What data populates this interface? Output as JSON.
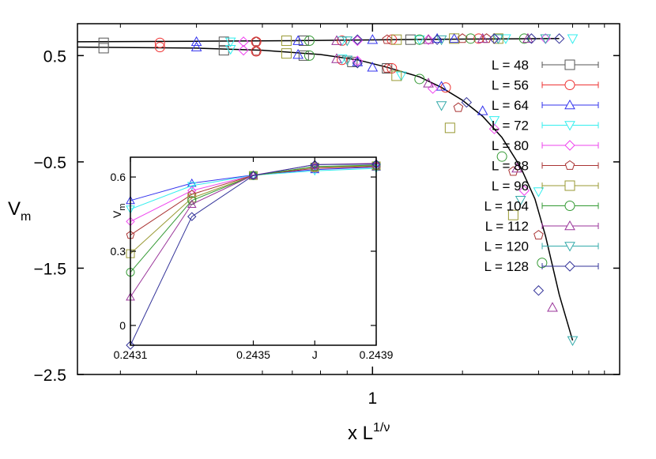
{
  "chart_data": [
    {
      "name": "main",
      "type": "scatter",
      "title": "",
      "xlabel": "x L^{1/ν}",
      "xlabel_base": "x L",
      "xlabel_sup": "1/ν",
      "ylabel": "V_m",
      "ylabel_base": "V",
      "ylabel_sub": "m",
      "xscale": "log",
      "xlim": [
        0.55,
        1.65
      ],
      "ylim": [
        -2.5,
        0.8
      ],
      "xticks": [
        {
          "value": 1,
          "label": "1"
        }
      ],
      "yticks": [
        {
          "value": 0.5,
          "label": "0.5"
        },
        {
          "value": -0.5,
          "label": "−0.5"
        },
        {
          "value": -1.5,
          "label": "−1.5"
        },
        {
          "value": -2.5,
          "label": "−2.5"
        }
      ],
      "grid": false,
      "legend_position": "upper right",
      "series": [
        {
          "name": "L = 48",
          "color": "#555555",
          "marker": "square",
          "x_upper": [
            0.58,
            0.74,
            0.87,
            1.08
          ],
          "y_upper": [
            0.62,
            0.63,
            0.64,
            0.65
          ],
          "x_lower": [
            0.58,
            0.74,
            0.87,
            0.96,
            1.03
          ],
          "y_lower": [
            0.57,
            0.55,
            0.5,
            0.44,
            0.38
          ]
        },
        {
          "name": "L = 56",
          "color": "#ee3333",
          "marker": "circle",
          "x_upper": [
            0.65,
            0.79,
            0.94,
            1.04,
            1.24
          ],
          "y_upper": [
            0.62,
            0.63,
            0.64,
            0.65,
            0.66
          ],
          "x_lower": [
            0.65,
            0.79,
            0.94,
            1.04,
            1.16
          ],
          "y_lower": [
            0.58,
            0.54,
            0.46,
            0.38,
            0.2
          ]
        },
        {
          "name": "L = 64",
          "color": "#3333ee",
          "marker": "triangle-up",
          "x_upper": [
            0.7,
            0.86,
            1.0,
            1.14,
            1.18
          ],
          "y_upper": [
            0.63,
            0.64,
            0.65,
            0.66,
            0.66
          ],
          "x_lower": [
            0.7,
            0.86,
            0.97,
            1.0,
            1.15,
            1.25
          ],
          "y_lower": [
            0.58,
            0.51,
            0.44,
            0.39,
            0.21,
            -0.02
          ]
        },
        {
          "name": "L = 72",
          "color": "#33eeee",
          "marker": "triangle-down",
          "x_upper": [
            0.75,
            0.94,
            1.1,
            1.31,
            1.5
          ],
          "y_upper": [
            0.63,
            0.64,
            0.65,
            0.66,
            0.66
          ],
          "x_lower": [
            0.75,
            0.94,
            1.06,
            1.28,
            1.4
          ],
          "y_lower": [
            0.56,
            0.47,
            0.31,
            -0.11,
            -0.78
          ]
        },
        {
          "name": "L = 80",
          "color": "#ee44ee",
          "marker": "diamond",
          "x_upper": [
            0.77,
            0.97,
            1.12,
            1.28,
            1.42
          ],
          "y_upper": [
            0.63,
            0.64,
            0.65,
            0.66,
            0.66
          ],
          "x_lower": [
            0.77,
            0.97,
            1.13,
            1.28,
            1.36
          ],
          "y_lower": [
            0.55,
            0.45,
            0.19,
            -0.19,
            -0.77
          ]
        },
        {
          "name": "L = 88",
          "color": "#aa3333",
          "marker": "pentagon",
          "x_upper": [
            0.79,
            1.03,
            1.2,
            1.26
          ],
          "y_upper": [
            0.63,
            0.65,
            0.66,
            0.66
          ],
          "x_lower": [
            0.79,
            1.03,
            1.19,
            1.33,
            1.4
          ],
          "y_lower": [
            0.54,
            0.38,
            0.01,
            -0.59,
            -1.19
          ]
        },
        {
          "name": "L = 96",
          "color": "#999933",
          "marker": "square",
          "x_upper": [
            0.84,
            1.05,
            1.18,
            1.29
          ],
          "y_upper": [
            0.64,
            0.65,
            0.66,
            0.66
          ],
          "x_lower": [
            0.84,
            1.05,
            1.17,
            1.33
          ],
          "y_lower": [
            0.52,
            0.31,
            -0.18,
            -1.0
          ]
        },
        {
          "name": "L = 104",
          "color": "#339933",
          "marker": "circle",
          "x_upper": [
            0.88,
            1.1,
            1.22,
            1.36
          ],
          "y_upper": [
            0.64,
            0.65,
            0.66,
            0.66
          ],
          "x_lower": [
            0.88,
            1.1,
            1.3,
            1.41
          ],
          "y_lower": [
            0.5,
            0.28,
            -0.45,
            -1.45
          ]
        },
        {
          "name": "L = 112",
          "color": "#993399",
          "marker": "triangle-up",
          "x_upper": [
            0.93,
            1.12,
            1.25,
            1.37
          ],
          "y_upper": [
            0.64,
            0.65,
            0.66,
            0.66
          ],
          "x_lower": [
            0.93,
            1.12,
            1.34,
            1.44
          ],
          "y_lower": [
            0.47,
            0.24,
            -0.56,
            -1.87
          ]
        },
        {
          "name": "L = 120",
          "color": "#33aaaa",
          "marker": "triangle-down",
          "x_upper": [
            0.95,
            1.15,
            1.29,
            1.42
          ],
          "y_upper": [
            0.64,
            0.65,
            0.66,
            0.66
          ],
          "x_lower": [
            0.95,
            1.15,
            1.35,
            1.5
          ],
          "y_lower": [
            0.46,
            0.03,
            -0.86,
            -2.18
          ]
        },
        {
          "name": "L = 128",
          "color": "#333399",
          "marker": "diamond",
          "x_upper": [
            0.97,
            1.14,
            1.28,
            1.38,
            1.46
          ],
          "y_upper": [
            0.65,
            0.65,
            0.66,
            0.66,
            0.66
          ],
          "x_lower": [
            0.97,
            1.21,
            1.4
          ],
          "y_lower": [
            0.43,
            0.06,
            -1.71
          ]
        }
      ],
      "fit_curves": {
        "color": "#000000",
        "upper": {
          "x": [
            0.55,
            0.7,
            0.85,
            1.0,
            1.2,
            1.46
          ],
          "y": [
            0.63,
            0.635,
            0.64,
            0.648,
            0.655,
            0.66
          ]
        },
        "lower": {
          "x": [
            0.55,
            0.7,
            0.8,
            0.9,
            0.97,
            1.03,
            1.1,
            1.15,
            1.2,
            1.25,
            1.3,
            1.35,
            1.39,
            1.42,
            1.46,
            1.5
          ],
          "y": [
            0.58,
            0.57,
            0.55,
            0.51,
            0.46,
            0.39,
            0.3,
            0.2,
            0.08,
            -0.07,
            -0.27,
            -0.55,
            -0.85,
            -1.2,
            -1.75,
            -2.18
          ]
        }
      }
    },
    {
      "name": "inset",
      "type": "line",
      "title": "",
      "xlabel": "J",
      "ylabel": "V_m",
      "ylabel_base": "V",
      "ylabel_sub": "m",
      "xlim": [
        0.2431,
        0.2439
      ],
      "ylim": [
        -0.08,
        0.68
      ],
      "xticks": [
        {
          "value": 0.2431,
          "label": "0.2431"
        },
        {
          "value": 0.2435,
          "label": "0.2435"
        },
        {
          "value": 0.2437,
          "label": "J"
        },
        {
          "value": 0.2439,
          "label": "0.2439"
        }
      ],
      "yticks": [
        {
          "value": 0.6,
          "label": "0.6"
        },
        {
          "value": 0.3,
          "label": "0.3"
        },
        {
          "value": 0,
          "label": "0"
        }
      ],
      "grid": false,
      "categories": [
        0.2431,
        0.2433,
        0.2435,
        0.2437,
        0.2439
      ],
      "series": [
        {
          "name": "L = 64",
          "color": "#3333ee",
          "marker": "triangle-up",
          "values": [
            0.505,
            0.575,
            0.608,
            0.63,
            0.64
          ]
        },
        {
          "name": "L = 72",
          "color": "#33eeee",
          "marker": "triangle-down",
          "values": [
            0.47,
            0.565,
            0.607,
            0.625,
            0.635
          ]
        },
        {
          "name": "L = 80",
          "color": "#ee44ee",
          "marker": "diamond",
          "values": [
            0.42,
            0.545,
            0.607,
            0.64,
            0.645
          ]
        },
        {
          "name": "L = 88",
          "color": "#aa3333",
          "marker": "pentagon",
          "values": [
            0.365,
            0.53,
            0.607,
            0.635,
            0.643
          ]
        },
        {
          "name": "L = 96",
          "color": "#999933",
          "marker": "square",
          "values": [
            0.29,
            0.515,
            0.606,
            0.64,
            0.645
          ]
        },
        {
          "name": "L = 104",
          "color": "#339933",
          "marker": "circle",
          "values": [
            0.215,
            0.505,
            0.606,
            0.642,
            0.648
          ]
        },
        {
          "name": "L = 112",
          "color": "#993399",
          "marker": "triangle-up",
          "values": [
            0.115,
            0.49,
            0.607,
            0.65,
            0.655
          ]
        },
        {
          "name": "L = 128",
          "color": "#333399",
          "marker": "diamond",
          "values": [
            -0.08,
            0.44,
            0.606,
            0.65,
            0.652
          ]
        }
      ]
    }
  ],
  "legend": {
    "items": [
      {
        "label": "L = 48",
        "color": "#555555",
        "marker": "square"
      },
      {
        "label": "L = 56",
        "color": "#ee3333",
        "marker": "circle"
      },
      {
        "label": "L = 64",
        "color": "#3333ee",
        "marker": "triangle-up"
      },
      {
        "label": "L = 72",
        "color": "#33eeee",
        "marker": "triangle-down"
      },
      {
        "label": "L = 80",
        "color": "#ee44ee",
        "marker": "diamond"
      },
      {
        "label": "L = 88",
        "color": "#aa3333",
        "marker": "pentagon"
      },
      {
        "label": "L = 96",
        "color": "#999933",
        "marker": "square"
      },
      {
        "label": "L = 104",
        "color": "#339933",
        "marker": "circle"
      },
      {
        "label": "L = 112",
        "color": "#993399",
        "marker": "triangle-up"
      },
      {
        "label": "L = 120",
        "color": "#33aaaa",
        "marker": "triangle-down"
      },
      {
        "label": "L = 128",
        "color": "#333399",
        "marker": "diamond"
      }
    ]
  }
}
